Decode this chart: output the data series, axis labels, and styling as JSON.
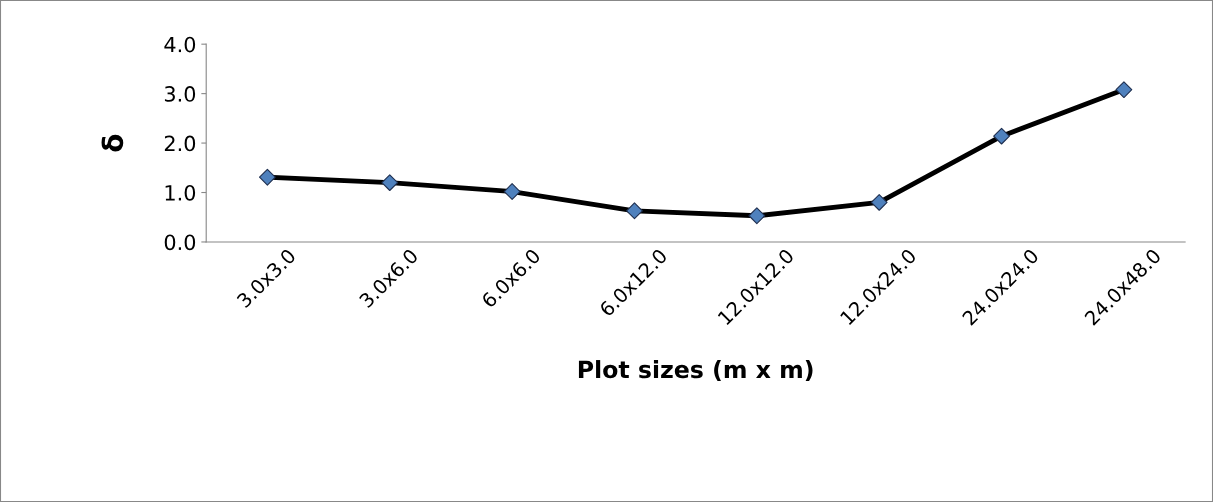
{
  "chart_data": {
    "type": "line",
    "xlabel": "Plot sizes (m x m)",
    "ylabel": "δ",
    "categories": [
      "3.0x3.0",
      "3.0x6.0",
      "6.0x6.0",
      "6.0x12.0",
      "12.0x12.0",
      "12.0x24.0",
      "24.0x24.0",
      "24.0x48.0"
    ],
    "series": [
      {
        "color": "#000000",
        "colors": [
          "#4f81bd",
          "#4f81bd",
          "#4f81bd",
          "#4f81bd",
          "#4f81bd",
          "#4f81bd",
          "#4f81bd",
          "#4f81bd"
        ],
        "values": [
          1.31,
          1.2,
          1.02,
          0.63,
          0.53,
          0.8,
          2.14,
          3.08
        ]
      }
    ],
    "ylim": [
      0,
      4
    ],
    "yticks": [
      {
        "value": 0,
        "label": "0.0"
      },
      {
        "value": 1,
        "label": "1.0"
      },
      {
        "value": 2,
        "label": "2.0"
      },
      {
        "value": 3,
        "label": "3.0"
      },
      {
        "value": 4,
        "label": "4.0"
      }
    ],
    "grid": false,
    "legend": false,
    "marker": "diamond",
    "line_style": "solid"
  }
}
